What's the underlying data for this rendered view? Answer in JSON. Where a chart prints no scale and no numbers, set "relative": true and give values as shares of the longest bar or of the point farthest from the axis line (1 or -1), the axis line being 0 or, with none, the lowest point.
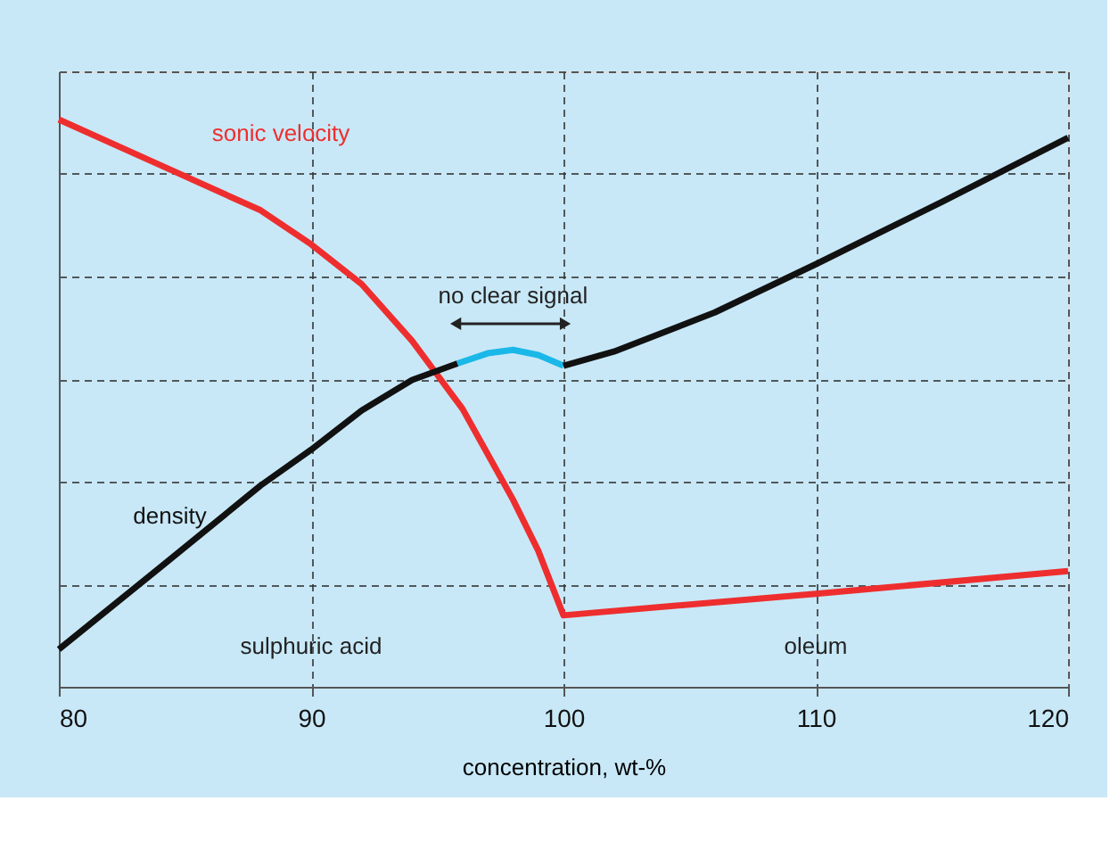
{
  "chart_data": {
    "type": "line",
    "relative": true,
    "xlabel": "concentration, wt-%",
    "xlim": [
      80,
      120
    ],
    "xticks": [
      80,
      90,
      100,
      110,
      120
    ],
    "grid": true,
    "marker": "none",
    "line_style": "solid",
    "series": [
      {
        "name": "sonic velocity",
        "color": "#ee2e2e",
        "x": [
          80,
          84,
          88,
          90,
          92,
          94,
          95,
          96,
          98,
          99,
          100,
          110,
          120
        ],
        "values": [
          1.0,
          0.92,
          0.84,
          0.78,
          0.71,
          0.61,
          0.55,
          0.49,
          0.33,
          0.24,
          0.126,
          0.164,
          0.204
        ]
      },
      {
        "name": "density",
        "color": "#111111",
        "x": [
          80,
          84,
          88,
          90,
          92,
          94,
          95.8
        ],
        "values": [
          0.066,
          0.21,
          0.355,
          0.418,
          0.487,
          0.541,
          0.57
        ]
      },
      {
        "color": "#1ab8e8",
        "x": [
          95.8,
          97,
          98,
          99,
          100
        ],
        "values": [
          0.57,
          0.588,
          0.594,
          0.585,
          0.566
        ]
      },
      {
        "color": "#111111",
        "x": [
          100,
          102,
          106,
          110,
          115,
          120
        ],
        "values": [
          0.566,
          0.591,
          0.66,
          0.745,
          0.855,
          0.968
        ]
      }
    ],
    "annotations": [
      "no clear signal",
      "sulphuric acid",
      "oleum"
    ]
  }
}
